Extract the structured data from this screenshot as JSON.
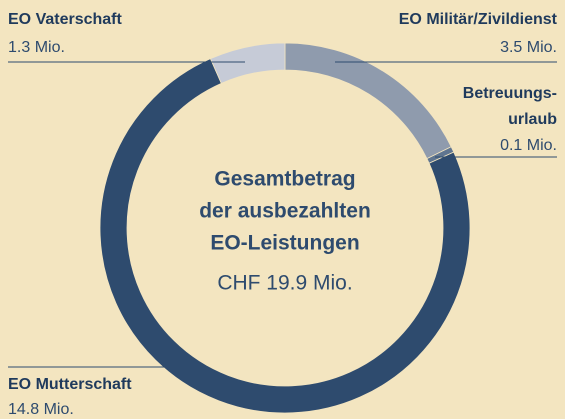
{
  "chart_data": {
    "type": "donut",
    "categories": [
      [
        "EO Militär/Zivildienst"
      ],
      [
        "Betreuungs-",
        "urlaub"
      ],
      [
        "EO Mutterschaft"
      ],
      [
        "EO Vaterschaft"
      ]
    ],
    "values": [
      3.5,
      0.1,
      14.8,
      1.3
    ],
    "value_labels": [
      "3.5 Mio.",
      "0.1 Mio.",
      "14.8 Mio.",
      "1.3 Mio."
    ],
    "colors": [
      "#8f9bad",
      "#5f7590",
      "#2e4b6e",
      "#c6cbd7"
    ],
    "center_title": [
      "Gesamtbetrag",
      "der ausbezahlten",
      "EO-Leistungen"
    ],
    "center_label": "CHF 19.9 Mio."
  }
}
